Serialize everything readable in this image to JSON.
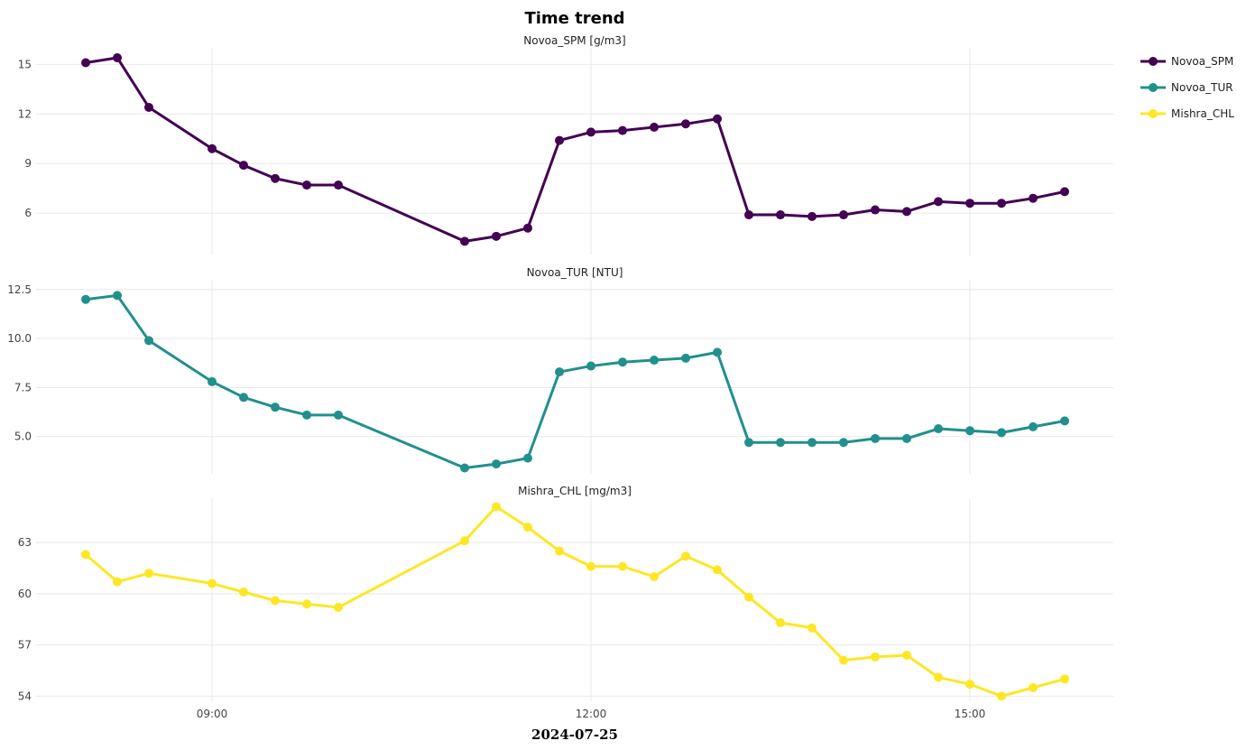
{
  "chart_data": {
    "type": "line",
    "title": "Time trend",
    "xlabel": "2024-07-25",
    "x_ticks": [
      "09:00",
      "12:00",
      "15:00"
    ],
    "x": [
      "08:00",
      "08:15",
      "08:30",
      "09:00",
      "09:15",
      "09:30",
      "09:45",
      "10:00",
      "11:00",
      "11:15",
      "11:30",
      "11:45",
      "12:00",
      "12:15",
      "12:30",
      "12:45",
      "13:00",
      "13:15",
      "13:30",
      "13:45",
      "14:00",
      "14:15",
      "14:30",
      "14:45",
      "15:00",
      "15:15",
      "15:30",
      "15:45"
    ],
    "legend": {
      "position": "top-right",
      "entries": [
        "Novoa_SPM",
        "Novoa_TUR",
        "Mishra_CHL"
      ]
    },
    "grid": true,
    "panels": [
      {
        "name": "Novoa_SPM",
        "subtitle": "Novoa_SPM [g/m3]",
        "color": "#440154",
        "ylim": [
          3.5,
          16.0
        ],
        "y_ticks": [
          "15",
          "12",
          "9",
          "6"
        ],
        "y_tick_values": [
          15,
          12,
          9,
          6
        ],
        "values": [
          15.1,
          15.4,
          12.4,
          9.9,
          8.9,
          8.1,
          7.7,
          7.7,
          4.3,
          4.6,
          5.1,
          10.4,
          10.9,
          11.0,
          11.2,
          11.4,
          11.7,
          5.9,
          5.9,
          5.8,
          5.9,
          6.2,
          6.1,
          6.7,
          6.6,
          6.6,
          6.9,
          7.3
        ]
      },
      {
        "name": "Novoa_TUR",
        "subtitle": "Novoa_TUR [NTU]",
        "color": "#21908d",
        "ylim": [
          3.1,
          13.0
        ],
        "y_ticks": [
          "12.5",
          "10.0",
          "7.5",
          "5.0"
        ],
        "y_tick_values": [
          12.5,
          10.0,
          7.5,
          5.0
        ],
        "values": [
          12.0,
          12.2,
          9.9,
          7.8,
          7.0,
          6.5,
          6.1,
          6.1,
          3.4,
          3.6,
          3.9,
          8.3,
          8.6,
          8.8,
          8.9,
          9.0,
          9.3,
          4.7,
          4.7,
          4.7,
          4.7,
          4.9,
          4.9,
          5.4,
          5.3,
          5.2,
          5.5,
          5.8
        ]
      },
      {
        "name": "Mishra_CHL",
        "subtitle": "Mishra_CHL [mg/m3]",
        "color": "#fde725",
        "ylim": [
          53.7,
          65.6
        ],
        "y_ticks": [
          "63",
          "60",
          "57",
          "54"
        ],
        "y_tick_values": [
          63,
          60,
          57,
          54
        ],
        "values": [
          62.3,
          60.7,
          61.2,
          60.6,
          60.1,
          59.6,
          59.4,
          59.2,
          63.1,
          65.1,
          63.9,
          62.5,
          61.6,
          61.6,
          61.0,
          62.2,
          61.4,
          59.8,
          58.3,
          58.0,
          56.1,
          56.3,
          56.4,
          55.1,
          54.7,
          54.0,
          54.5,
          55.0
        ]
      }
    ]
  }
}
